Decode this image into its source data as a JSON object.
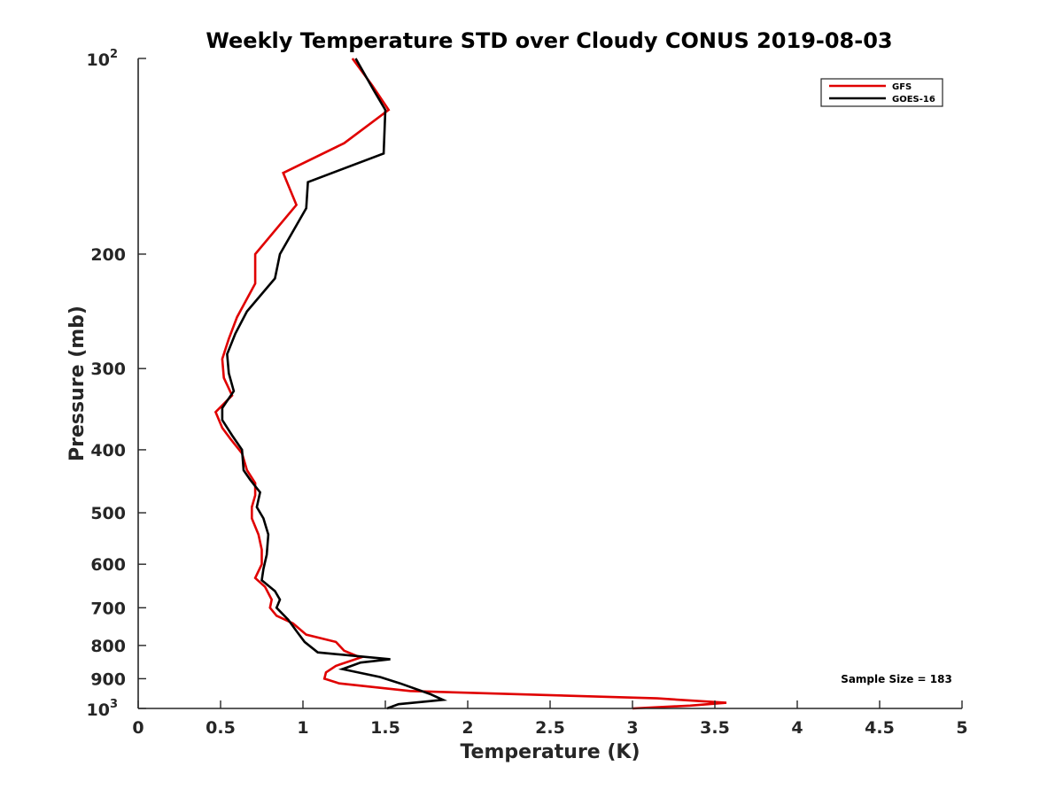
{
  "chart_data": {
    "type": "line",
    "title": "Weekly Temperature STD over Cloudy CONUS 2019-08-03",
    "xlabel": "Temperature (K)",
    "ylabel": "Pressure (mb)",
    "xlim": [
      0,
      5
    ],
    "ylim": [
      100,
      1000
    ],
    "y_scale": "log",
    "y_reversed": true,
    "x_ticks": [
      "0",
      "0.5",
      "1",
      "1.5",
      "2",
      "2.5",
      "3",
      "3.5",
      "4",
      "4.5",
      "5"
    ],
    "y_ticks": [
      {
        "value": 100,
        "base": "10",
        "exp": "2"
      },
      {
        "value": 200,
        "label": "200"
      },
      {
        "value": 300,
        "label": "300"
      },
      {
        "value": 400,
        "label": "400"
      },
      {
        "value": 500,
        "label": "500"
      },
      {
        "value": 600,
        "label": "600"
      },
      {
        "value": 700,
        "label": "700"
      },
      {
        "value": 800,
        "label": "800"
      },
      {
        "value": 900,
        "label": "900"
      },
      {
        "value": 1000,
        "base": "10",
        "exp": "3"
      }
    ],
    "grid": false,
    "legend_position": "top-right",
    "annotation": "Sample Size = 183",
    "series": [
      {
        "name": "GFS",
        "color": "#e00000",
        "points": [
          [
            1.3,
            100
          ],
          [
            1.42,
            110
          ],
          [
            1.52,
            120
          ],
          [
            1.25,
            135
          ],
          [
            0.88,
            150
          ],
          [
            0.96,
            168
          ],
          [
            0.71,
            200
          ],
          [
            0.71,
            222
          ],
          [
            0.6,
            250
          ],
          [
            0.55,
            270
          ],
          [
            0.51,
            290
          ],
          [
            0.52,
            310
          ],
          [
            0.57,
            330
          ],
          [
            0.47,
            350
          ],
          [
            0.51,
            370
          ],
          [
            0.56,
            385
          ],
          [
            0.63,
            405
          ],
          [
            0.66,
            430
          ],
          [
            0.71,
            450
          ],
          [
            0.71,
            470
          ],
          [
            0.69,
            490
          ],
          [
            0.69,
            510
          ],
          [
            0.73,
            540
          ],
          [
            0.75,
            570
          ],
          [
            0.75,
            600
          ],
          [
            0.71,
            630
          ],
          [
            0.77,
            650
          ],
          [
            0.81,
            680
          ],
          [
            0.8,
            700
          ],
          [
            0.84,
            720
          ],
          [
            0.94,
            740
          ],
          [
            1.02,
            770
          ],
          [
            1.2,
            790
          ],
          [
            1.25,
            815
          ],
          [
            1.35,
            835
          ],
          [
            1.2,
            860
          ],
          [
            1.14,
            880
          ],
          [
            1.13,
            900
          ],
          [
            1.22,
            915
          ],
          [
            1.65,
            940
          ],
          [
            3.15,
            965
          ],
          [
            3.57,
            980
          ],
          [
            3.35,
            990
          ],
          [
            3.0,
            1000
          ]
        ]
      },
      {
        "name": "GOES-16",
        "color": "#000000",
        "points": [
          [
            1.32,
            100
          ],
          [
            1.43,
            112
          ],
          [
            1.5,
            120
          ],
          [
            1.49,
            140
          ],
          [
            1.03,
            155
          ],
          [
            1.02,
            170
          ],
          [
            0.86,
            200
          ],
          [
            0.83,
            218
          ],
          [
            0.66,
            245
          ],
          [
            0.59,
            265
          ],
          [
            0.54,
            285
          ],
          [
            0.55,
            305
          ],
          [
            0.58,
            325
          ],
          [
            0.51,
            345
          ],
          [
            0.51,
            360
          ],
          [
            0.57,
            380
          ],
          [
            0.63,
            400
          ],
          [
            0.64,
            430
          ],
          [
            0.68,
            445
          ],
          [
            0.74,
            465
          ],
          [
            0.72,
            490
          ],
          [
            0.76,
            510
          ],
          [
            0.79,
            540
          ],
          [
            0.78,
            580
          ],
          [
            0.76,
            610
          ],
          [
            0.75,
            635
          ],
          [
            0.83,
            660
          ],
          [
            0.86,
            680
          ],
          [
            0.84,
            700
          ],
          [
            0.91,
            730
          ],
          [
            0.96,
            760
          ],
          [
            1.01,
            790
          ],
          [
            1.09,
            820
          ],
          [
            1.53,
            840
          ],
          [
            1.35,
            850
          ],
          [
            1.24,
            870
          ],
          [
            1.47,
            895
          ],
          [
            1.59,
            915
          ],
          [
            1.77,
            950
          ],
          [
            1.85,
            970
          ],
          [
            1.58,
            985
          ],
          [
            1.51,
            1000
          ]
        ]
      }
    ]
  }
}
